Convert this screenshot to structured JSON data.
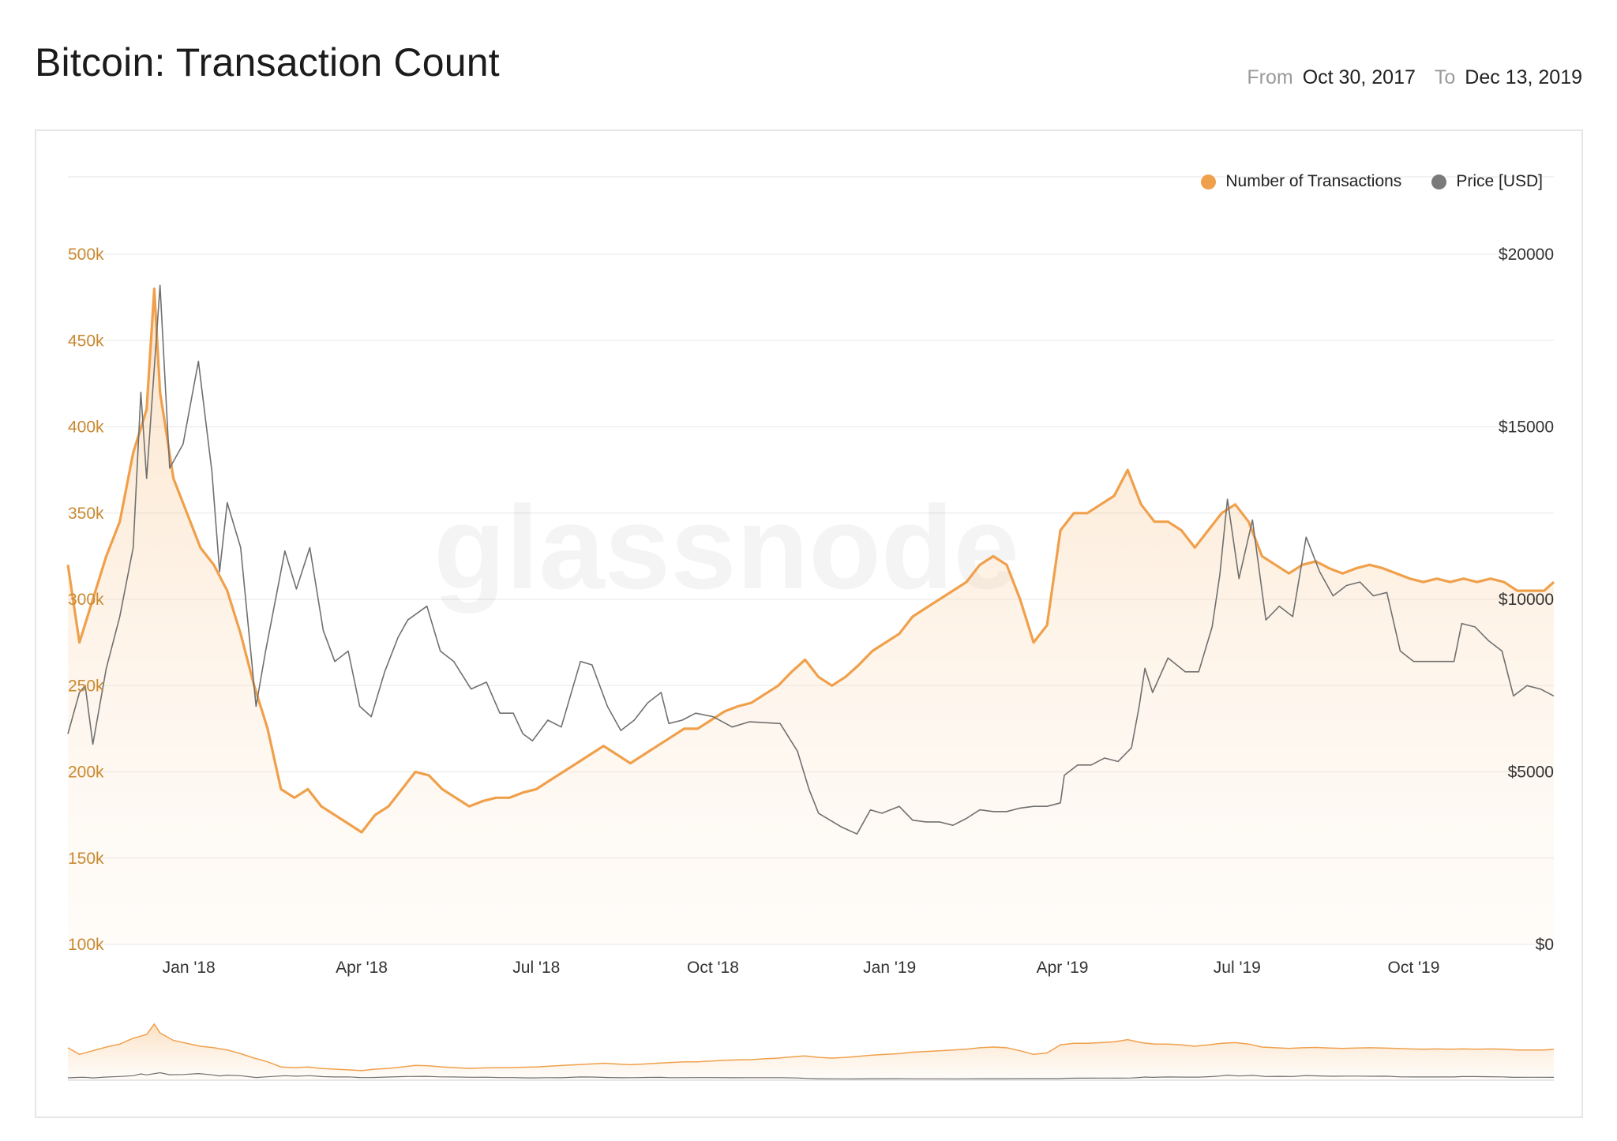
{
  "header": {
    "title": "Bitcoin: Transaction Count",
    "from_label": "From",
    "from_date": "Oct 30, 2017",
    "to_label": "To",
    "to_date": "Dec 13, 2019"
  },
  "watermark": "glassnode",
  "chart_data": {
    "type": "line",
    "title": "Bitcoin: Transaction Count",
    "legend_position": "top-right",
    "grid": true,
    "x_range": [
      "2017-10-30",
      "2019-12-13"
    ],
    "x_ticks": [
      {
        "label": "Jan '18",
        "date": "2018-01-01"
      },
      {
        "label": "Apr '18",
        "date": "2018-04-01"
      },
      {
        "label": "Jul '18",
        "date": "2018-07-01"
      },
      {
        "label": "Oct '18",
        "date": "2018-10-01"
      },
      {
        "label": "Jan '19",
        "date": "2019-01-01"
      },
      {
        "label": "Apr '19",
        "date": "2019-04-01"
      },
      {
        "label": "Jul '19",
        "date": "2019-07-01"
      },
      {
        "label": "Oct '19",
        "date": "2019-10-01"
      }
    ],
    "y_left": {
      "range": [
        100000,
        500000
      ],
      "ticks": [
        {
          "label": "100k",
          "value": 100000
        },
        {
          "label": "150k",
          "value": 150000
        },
        {
          "label": "200k",
          "value": 200000
        },
        {
          "label": "250k",
          "value": 250000
        },
        {
          "label": "300k",
          "value": 300000
        },
        {
          "label": "350k",
          "value": 350000
        },
        {
          "label": "400k",
          "value": 400000
        },
        {
          "label": "450k",
          "value": 450000
        },
        {
          "label": "500k",
          "value": 500000
        }
      ]
    },
    "y_right": {
      "range": [
        0,
        20000
      ],
      "ticks": [
        {
          "label": "$0",
          "value": 0
        },
        {
          "label": "$5000",
          "value": 5000
        },
        {
          "label": "$10000",
          "value": 10000
        },
        {
          "label": "$15000",
          "value": 15000
        },
        {
          "label": "$20000",
          "value": 20000
        }
      ]
    },
    "series": [
      {
        "name": "Number of Transactions",
        "axis": "left",
        "color": "#f0a04b",
        "points": [
          [
            "2017-10-30",
            320000
          ],
          [
            "2017-11-05",
            275000
          ],
          [
            "2017-11-12",
            300000
          ],
          [
            "2017-11-19",
            325000
          ],
          [
            "2017-11-26",
            345000
          ],
          [
            "2017-12-03",
            385000
          ],
          [
            "2017-12-10",
            410000
          ],
          [
            "2017-12-14",
            480000
          ],
          [
            "2017-12-17",
            420000
          ],
          [
            "2017-12-24",
            370000
          ],
          [
            "2017-12-31",
            350000
          ],
          [
            "2018-01-07",
            330000
          ],
          [
            "2018-01-14",
            320000
          ],
          [
            "2018-01-21",
            305000
          ],
          [
            "2018-01-28",
            280000
          ],
          [
            "2018-02-04",
            250000
          ],
          [
            "2018-02-11",
            225000
          ],
          [
            "2018-02-18",
            190000
          ],
          [
            "2018-02-25",
            185000
          ],
          [
            "2018-03-04",
            190000
          ],
          [
            "2018-03-11",
            180000
          ],
          [
            "2018-03-18",
            175000
          ],
          [
            "2018-03-25",
            170000
          ],
          [
            "2018-04-01",
            165000
          ],
          [
            "2018-04-08",
            175000
          ],
          [
            "2018-04-15",
            180000
          ],
          [
            "2018-04-22",
            190000
          ],
          [
            "2018-04-29",
            200000
          ],
          [
            "2018-05-06",
            198000
          ],
          [
            "2018-05-13",
            190000
          ],
          [
            "2018-05-20",
            185000
          ],
          [
            "2018-05-27",
            180000
          ],
          [
            "2018-06-03",
            183000
          ],
          [
            "2018-06-10",
            185000
          ],
          [
            "2018-06-17",
            185000
          ],
          [
            "2018-06-24",
            188000
          ],
          [
            "2018-07-01",
            190000
          ],
          [
            "2018-07-08",
            195000
          ],
          [
            "2018-07-15",
            200000
          ],
          [
            "2018-07-22",
            205000
          ],
          [
            "2018-07-29",
            210000
          ],
          [
            "2018-08-05",
            215000
          ],
          [
            "2018-08-12",
            210000
          ],
          [
            "2018-08-19",
            205000
          ],
          [
            "2018-08-26",
            210000
          ],
          [
            "2018-09-02",
            215000
          ],
          [
            "2018-09-09",
            220000
          ],
          [
            "2018-09-16",
            225000
          ],
          [
            "2018-09-23",
            225000
          ],
          [
            "2018-09-30",
            230000
          ],
          [
            "2018-10-07",
            235000
          ],
          [
            "2018-10-14",
            238000
          ],
          [
            "2018-10-21",
            240000
          ],
          [
            "2018-10-28",
            245000
          ],
          [
            "2018-11-04",
            250000
          ],
          [
            "2018-11-11",
            258000
          ],
          [
            "2018-11-18",
            265000
          ],
          [
            "2018-11-25",
            255000
          ],
          [
            "2018-12-02",
            250000
          ],
          [
            "2018-12-09",
            255000
          ],
          [
            "2018-12-16",
            262000
          ],
          [
            "2018-12-23",
            270000
          ],
          [
            "2018-12-30",
            275000
          ],
          [
            "2019-01-06",
            280000
          ],
          [
            "2019-01-13",
            290000
          ],
          [
            "2019-01-20",
            295000
          ],
          [
            "2019-01-27",
            300000
          ],
          [
            "2019-02-03",
            305000
          ],
          [
            "2019-02-10",
            310000
          ],
          [
            "2019-02-17",
            320000
          ],
          [
            "2019-02-24",
            325000
          ],
          [
            "2019-03-03",
            320000
          ],
          [
            "2019-03-10",
            300000
          ],
          [
            "2019-03-17",
            275000
          ],
          [
            "2019-03-24",
            285000
          ],
          [
            "2019-03-31",
            340000
          ],
          [
            "2019-04-07",
            350000
          ],
          [
            "2019-04-14",
            350000
          ],
          [
            "2019-04-21",
            355000
          ],
          [
            "2019-04-28",
            360000
          ],
          [
            "2019-05-05",
            375000
          ],
          [
            "2019-05-12",
            355000
          ],
          [
            "2019-05-19",
            345000
          ],
          [
            "2019-05-26",
            345000
          ],
          [
            "2019-06-02",
            340000
          ],
          [
            "2019-06-09",
            330000
          ],
          [
            "2019-06-16",
            340000
          ],
          [
            "2019-06-23",
            350000
          ],
          [
            "2019-06-30",
            355000
          ],
          [
            "2019-07-07",
            345000
          ],
          [
            "2019-07-14",
            325000
          ],
          [
            "2019-07-21",
            320000
          ],
          [
            "2019-07-28",
            315000
          ],
          [
            "2019-08-04",
            320000
          ],
          [
            "2019-08-11",
            322000
          ],
          [
            "2019-08-18",
            318000
          ],
          [
            "2019-08-25",
            315000
          ],
          [
            "2019-09-01",
            318000
          ],
          [
            "2019-09-08",
            320000
          ],
          [
            "2019-09-15",
            318000
          ],
          [
            "2019-09-22",
            315000
          ],
          [
            "2019-09-29",
            312000
          ],
          [
            "2019-10-06",
            310000
          ],
          [
            "2019-10-13",
            312000
          ],
          [
            "2019-10-20",
            310000
          ],
          [
            "2019-10-27",
            312000
          ],
          [
            "2019-11-03",
            310000
          ],
          [
            "2019-11-10",
            312000
          ],
          [
            "2019-11-17",
            310000
          ],
          [
            "2019-11-24",
            305000
          ],
          [
            "2019-12-01",
            305000
          ],
          [
            "2019-12-08",
            305000
          ],
          [
            "2019-12-13",
            310000
          ]
        ]
      },
      {
        "name": "Price [USD]",
        "axis": "right",
        "color": "#707070",
        "points": [
          [
            "2017-10-30",
            6100
          ],
          [
            "2017-11-05",
            7300
          ],
          [
            "2017-11-08",
            7500
          ],
          [
            "2017-11-12",
            5800
          ],
          [
            "2017-11-19",
            8000
          ],
          [
            "2017-11-26",
            9500
          ],
          [
            "2017-12-03",
            11500
          ],
          [
            "2017-12-07",
            16000
          ],
          [
            "2017-12-10",
            13500
          ],
          [
            "2017-12-17",
            19100
          ],
          [
            "2017-12-22",
            13800
          ],
          [
            "2017-12-29",
            14500
          ],
          [
            "2018-01-06",
            16900
          ],
          [
            "2018-01-13",
            13700
          ],
          [
            "2018-01-17",
            10800
          ],
          [
            "2018-01-21",
            12800
          ],
          [
            "2018-01-28",
            11500
          ],
          [
            "2018-02-05",
            6900
          ],
          [
            "2018-02-10",
            8500
          ],
          [
            "2018-02-20",
            11400
          ],
          [
            "2018-02-26",
            10300
          ],
          [
            "2018-03-05",
            11500
          ],
          [
            "2018-03-12",
            9100
          ],
          [
            "2018-03-18",
            8200
          ],
          [
            "2018-03-25",
            8500
          ],
          [
            "2018-03-31",
            6900
          ],
          [
            "2018-04-06",
            6600
          ],
          [
            "2018-04-13",
            7900
          ],
          [
            "2018-04-20",
            8900
          ],
          [
            "2018-04-25",
            9400
          ],
          [
            "2018-05-05",
            9800
          ],
          [
            "2018-05-12",
            8500
          ],
          [
            "2018-05-19",
            8200
          ],
          [
            "2018-05-28",
            7400
          ],
          [
            "2018-06-05",
            7600
          ],
          [
            "2018-06-12",
            6700
          ],
          [
            "2018-06-19",
            6700
          ],
          [
            "2018-06-24",
            6100
          ],
          [
            "2018-06-29",
            5900
          ],
          [
            "2018-07-07",
            6500
          ],
          [
            "2018-07-14",
            6300
          ],
          [
            "2018-07-24",
            8200
          ],
          [
            "2018-07-30",
            8100
          ],
          [
            "2018-08-07",
            6900
          ],
          [
            "2018-08-14",
            6200
          ],
          [
            "2018-08-21",
            6500
          ],
          [
            "2018-08-28",
            7000
          ],
          [
            "2018-09-04",
            7300
          ],
          [
            "2018-09-08",
            6400
          ],
          [
            "2018-09-15",
            6500
          ],
          [
            "2018-09-22",
            6700
          ],
          [
            "2018-10-01",
            6600
          ],
          [
            "2018-10-11",
            6300
          ],
          [
            "2018-10-20",
            6450
          ],
          [
            "2018-11-05",
            6400
          ],
          [
            "2018-11-14",
            5600
          ],
          [
            "2018-11-20",
            4500
          ],
          [
            "2018-11-25",
            3800
          ],
          [
            "2018-12-07",
            3400
          ],
          [
            "2018-12-15",
            3200
          ],
          [
            "2018-12-22",
            3900
          ],
          [
            "2018-12-28",
            3800
          ],
          [
            "2019-01-06",
            4000
          ],
          [
            "2019-01-13",
            3600
          ],
          [
            "2019-01-20",
            3550
          ],
          [
            "2019-01-27",
            3550
          ],
          [
            "2019-02-03",
            3450
          ],
          [
            "2019-02-10",
            3650
          ],
          [
            "2019-02-17",
            3900
          ],
          [
            "2019-02-24",
            3850
          ],
          [
            "2019-03-03",
            3850
          ],
          [
            "2019-03-10",
            3950
          ],
          [
            "2019-03-17",
            4000
          ],
          [
            "2019-03-24",
            4000
          ],
          [
            "2019-03-31",
            4100
          ],
          [
            "2019-04-02",
            4900
          ],
          [
            "2019-04-09",
            5200
          ],
          [
            "2019-04-16",
            5200
          ],
          [
            "2019-04-23",
            5400
          ],
          [
            "2019-04-30",
            5300
          ],
          [
            "2019-05-07",
            5700
          ],
          [
            "2019-05-11",
            6900
          ],
          [
            "2019-05-14",
            8000
          ],
          [
            "2019-05-18",
            7300
          ],
          [
            "2019-05-26",
            8300
          ],
          [
            "2019-06-04",
            7900
          ],
          [
            "2019-06-11",
            7900
          ],
          [
            "2019-06-18",
            9200
          ],
          [
            "2019-06-22",
            10700
          ],
          [
            "2019-06-26",
            12900
          ],
          [
            "2019-07-02",
            10600
          ],
          [
            "2019-07-09",
            12300
          ],
          [
            "2019-07-16",
            9400
          ],
          [
            "2019-07-23",
            9800
          ],
          [
            "2019-07-30",
            9500
          ],
          [
            "2019-08-06",
            11800
          ],
          [
            "2019-08-13",
            10800
          ],
          [
            "2019-08-20",
            10100
          ],
          [
            "2019-08-27",
            10400
          ],
          [
            "2019-09-03",
            10500
          ],
          [
            "2019-09-10",
            10100
          ],
          [
            "2019-09-17",
            10200
          ],
          [
            "2019-09-24",
            8500
          ],
          [
            "2019-10-01",
            8200
          ],
          [
            "2019-10-08",
            8200
          ],
          [
            "2019-10-15",
            8200
          ],
          [
            "2019-10-22",
            8200
          ],
          [
            "2019-10-26",
            9300
          ],
          [
            "2019-11-02",
            9200
          ],
          [
            "2019-11-09",
            8800
          ],
          [
            "2019-11-16",
            8500
          ],
          [
            "2019-11-22",
            7200
          ],
          [
            "2019-11-29",
            7500
          ],
          [
            "2019-12-06",
            7400
          ],
          [
            "2019-12-13",
            7200
          ]
        ]
      }
    ]
  }
}
